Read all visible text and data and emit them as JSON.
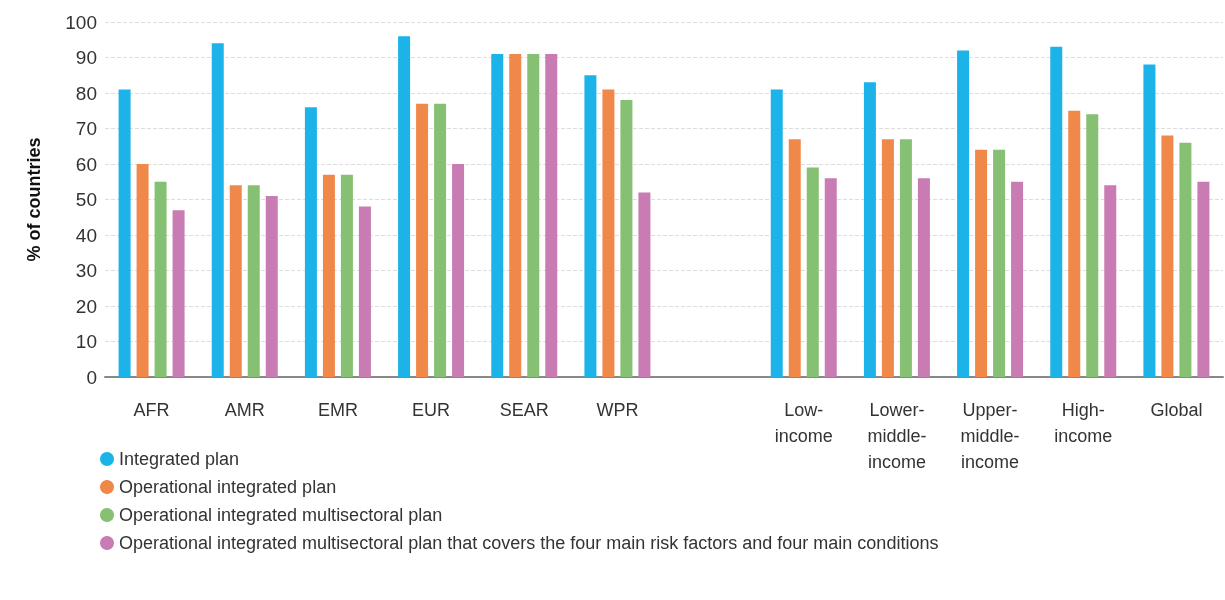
{
  "chart_data": {
    "type": "bar",
    "ylabel": "% of countries",
    "categories": [
      "AFR",
      "AMR",
      "EMR",
      "EUR",
      "SEAR",
      "WPR",
      null,
      "Low-income",
      "Lower-middle-income",
      "Upper-middle-income",
      "High-income",
      "Global"
    ],
    "series": [
      {
        "name": "Integrated plan",
        "color": "#1cb4e8",
        "values": [
          81,
          94,
          76,
          96,
          91,
          85,
          null,
          81,
          83,
          92,
          93,
          88
        ]
      },
      {
        "name": "Operational integrated plan",
        "color": "#f0884a",
        "values": [
          60,
          54,
          57,
          77,
          91,
          81,
          null,
          67,
          67,
          64,
          75,
          68
        ]
      },
      {
        "name": "Operational integrated multisectoral plan",
        "color": "#85c073",
        "values": [
          55,
          54,
          57,
          77,
          91,
          78,
          null,
          59,
          67,
          64,
          74,
          66
        ]
      },
      {
        "name": "Operational integrated multisectoral plan that covers the four main risk factors and four main conditions",
        "color": "#c97bb3",
        "values": [
          47,
          51,
          48,
          60,
          91,
          52,
          null,
          56,
          56,
          55,
          54,
          55
        ]
      }
    ],
    "ylim": [
      0,
      100
    ],
    "yticks": [
      0,
      10,
      20,
      30,
      40,
      50,
      60,
      70,
      80,
      90,
      100
    ],
    "grid": "y",
    "legend": "bottom left"
  }
}
